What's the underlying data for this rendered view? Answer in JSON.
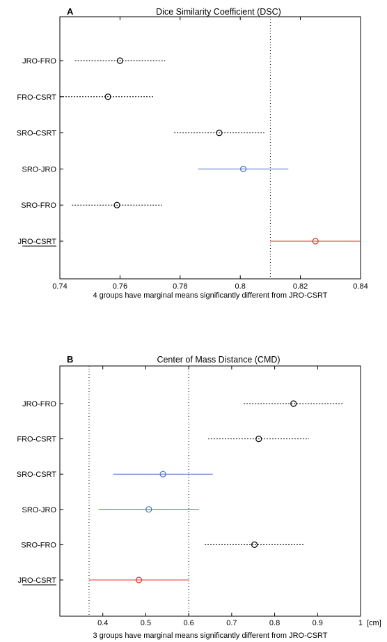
{
  "chart_data": [
    {
      "type": "scatter",
      "panel_label": "A",
      "title": "Dice Similarity Coefficient (DSC)",
      "xlabel": "4 groups have marginal means significantly different from JRO-CSRT",
      "x_unit": "",
      "xlim": [
        0.74,
        0.84
      ],
      "xticks": [
        0.74,
        0.76,
        0.78,
        0.8,
        0.82,
        0.84
      ],
      "xtick_labels": [
        "0.74",
        "0.76",
        "0.78",
        "0.8",
        "0.82",
        "0.84"
      ],
      "reference_lines": [
        0.81
      ],
      "categories": [
        "JRO-FRO",
        "FRO-CSRT",
        "SRO-CSRT",
        "SRO-JRO",
        "SRO-FRO",
        "JRO-CSRT"
      ],
      "underlined_category": "JRO-CSRT",
      "series": [
        {
          "mean": 0.76,
          "low": 0.745,
          "high": 0.775,
          "color": "#000000",
          "dashed": true
        },
        {
          "mean": 0.756,
          "low": 0.74,
          "high": 0.771,
          "color": "#000000",
          "dashed": true
        },
        {
          "mean": 0.793,
          "low": 0.778,
          "high": 0.808,
          "color": "#000000",
          "dashed": true
        },
        {
          "mean": 0.801,
          "low": 0.786,
          "high": 0.816,
          "color": "#4a6fc0",
          "dashed": false
        },
        {
          "mean": 0.759,
          "low": 0.744,
          "high": 0.774,
          "color": "#000000",
          "dashed": true
        },
        {
          "mean": 0.825,
          "low": 0.81,
          "high": 0.84,
          "color": "#e0302a",
          "dashed": false
        }
      ]
    },
    {
      "type": "scatter",
      "panel_label": "B",
      "title": "Center of Mass Distance (CMD)",
      "xlabel": "3 groups have marginal means significantly different from JRO-CSRT",
      "x_unit": "[cm]",
      "xlim": [
        0.3,
        1.0
      ],
      "xticks": [
        0.4,
        0.5,
        0.6,
        0.7,
        0.8,
        0.9,
        1.0
      ],
      "xtick_labels": [
        "0.4",
        "0.5",
        "0.6",
        "0.7",
        "0.8",
        "0.9",
        "1"
      ],
      "reference_lines": [
        0.368,
        0.6
      ],
      "categories": [
        "JRO-FRO",
        "FRO-CSRT",
        "SRO-CSRT",
        "SRO-JRO",
        "SRO-FRO",
        "JRO-CSRT"
      ],
      "underlined_category": "JRO-CSRT",
      "series": [
        {
          "mean": 0.844,
          "low": 0.728,
          "high": 0.96,
          "color": "#000000",
          "dashed": true
        },
        {
          "mean": 0.763,
          "low": 0.645,
          "high": 0.88,
          "color": "#000000",
          "dashed": true
        },
        {
          "mean": 0.54,
          "low": 0.424,
          "high": 0.656,
          "color": "#4a6fc0",
          "dashed": false
        },
        {
          "mean": 0.507,
          "low": 0.39,
          "high": 0.624,
          "color": "#4a6fc0",
          "dashed": false
        },
        {
          "mean": 0.753,
          "low": 0.637,
          "high": 0.869,
          "color": "#000000",
          "dashed": true
        },
        {
          "mean": 0.484,
          "low": 0.368,
          "high": 0.6,
          "color": "#e0302a",
          "dashed": false
        }
      ]
    }
  ]
}
